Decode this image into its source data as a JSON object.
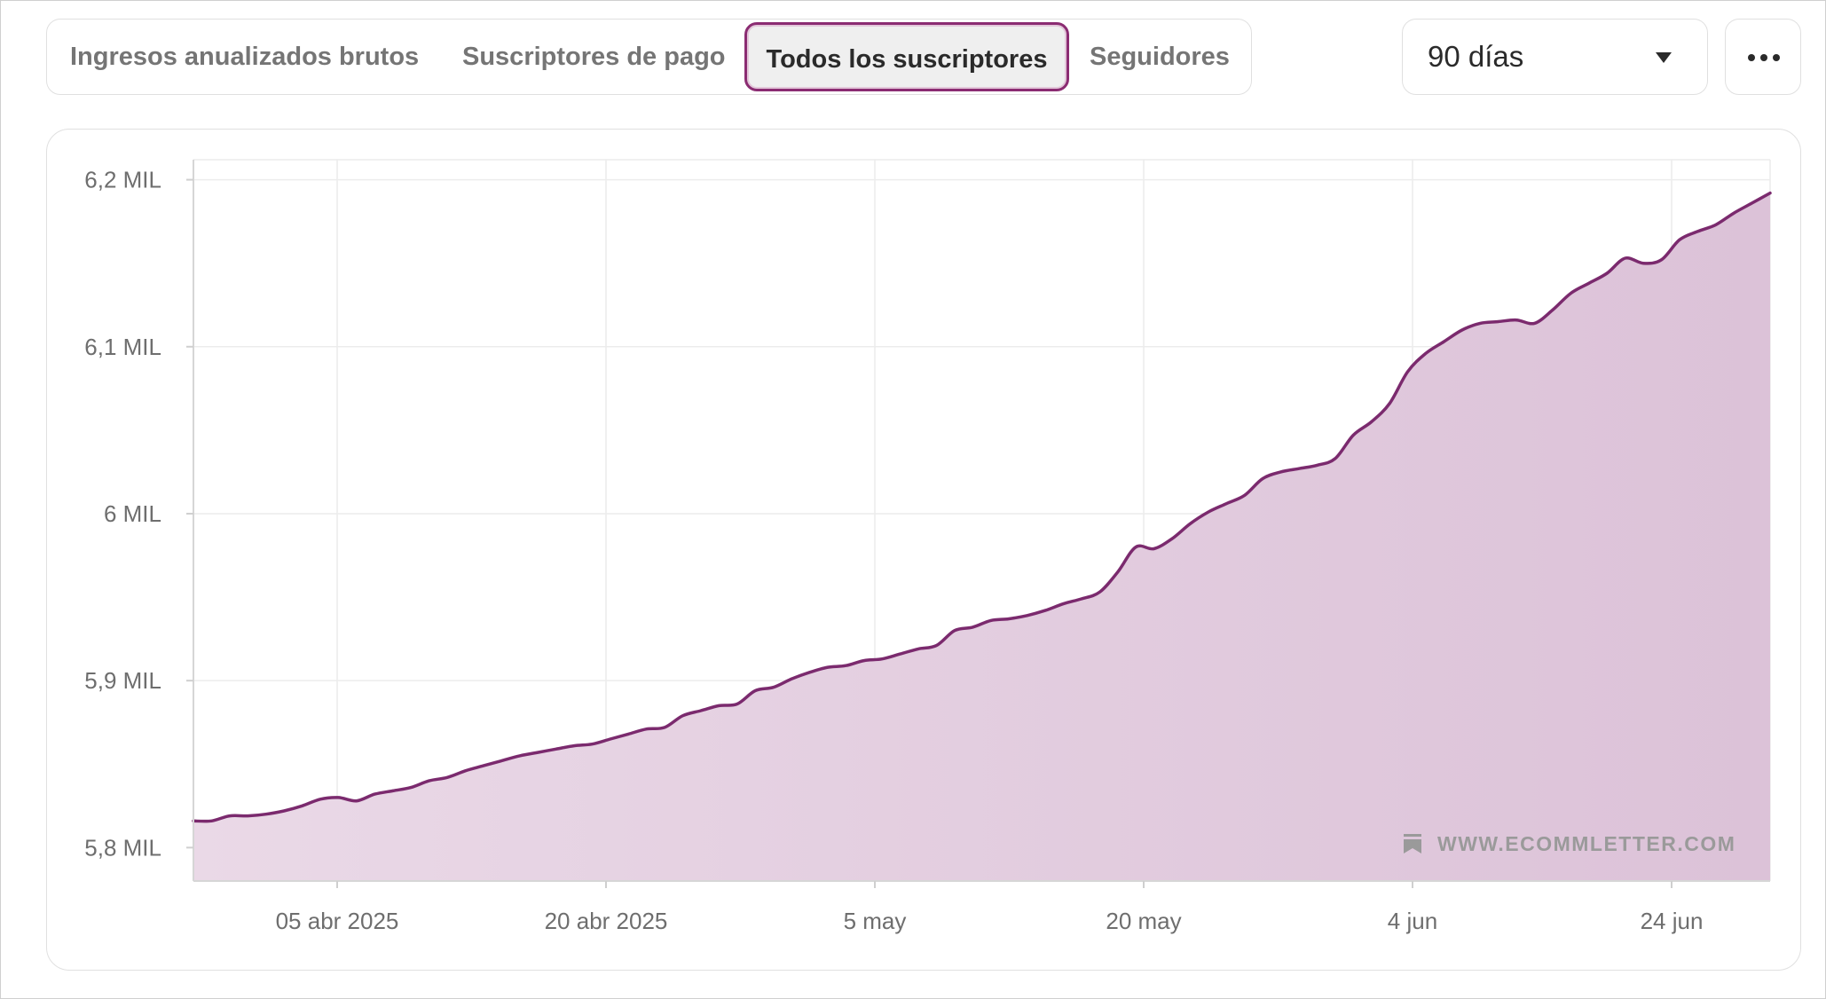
{
  "tabs": [
    {
      "label": "Ingresos anualizados brutos",
      "active": false
    },
    {
      "label": "Suscriptores de pago",
      "active": false
    },
    {
      "label": "Todos los suscriptores",
      "active": true
    },
    {
      "label": "Seguidores",
      "active": false
    }
  ],
  "range_select": {
    "value": "90 días",
    "icon": "chevron-down-icon"
  },
  "more_button": {
    "icon": "more-horizontal-icon"
  },
  "watermark": {
    "text": "WWW.ECOMMLETTER.COM",
    "icon": "bookmark-icon"
  },
  "colors": {
    "line": "#7b2a6e",
    "fill": "#dcc3d8",
    "accent": "#8b2c72"
  },
  "chart_data": {
    "type": "area",
    "title": "",
    "series": [
      {
        "values": [
          5816,
          5816,
          5819,
          5819,
          5820,
          5822,
          5825,
          5829,
          5830,
          5828,
          5832,
          5834,
          5836,
          5840,
          5842,
          5846,
          5849,
          5852,
          5855,
          5857,
          5859,
          5861,
          5862,
          5865,
          5868,
          5871,
          5872,
          5879,
          5882,
          5885,
          5886,
          5894,
          5896,
          5901,
          5905,
          5908,
          5909,
          5912,
          5913,
          5916,
          5919,
          5921,
          5930,
          5932,
          5936,
          5937,
          5939,
          5942,
          5946,
          5949,
          5953,
          5965,
          5980,
          5979,
          5985,
          5994,
          6001,
          6006,
          6011,
          6021,
          6025,
          6027,
          6029,
          6033,
          6047,
          6055,
          6066,
          6085,
          6096,
          6103,
          6110,
          6114,
          6115,
          6116,
          6114,
          6122,
          6132,
          6138,
          6144,
          6153,
          6150,
          6152,
          6164,
          6169,
          6173,
          6180,
          6186,
          6192
        ]
      }
    ],
    "x_ticks": [
      "05 abr 2025",
      "20 abr 2025",
      "5 may",
      "20 may",
      "4 jun",
      "24 jun"
    ],
    "y_ticks": [
      "5,8 MIL",
      "5,9 MIL",
      "6 MIL",
      "6,1 MIL",
      "6,2 MIL"
    ],
    "y_tick_values": [
      5800,
      5900,
      6000,
      6100,
      6200
    ],
    "ylim": [
      5780,
      6212
    ],
    "xlabel": "",
    "ylabel": "",
    "grid": true
  }
}
